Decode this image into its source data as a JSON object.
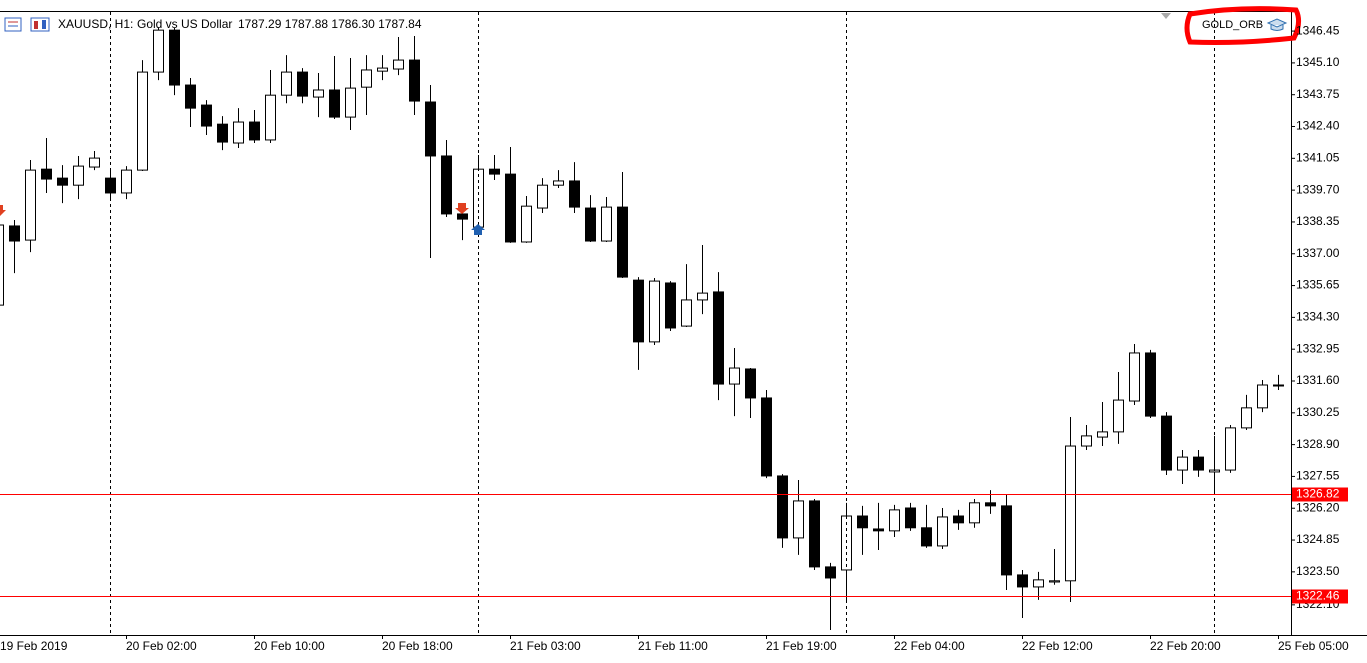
{
  "chart_data": {
    "type": "candlestick",
    "title": "XAUUSD, H1:",
    "subtitle": "Gold vs US Dollar",
    "quote": "1787.29 1787.88 1786.30 1787.84",
    "expert": "GOLD_ORB",
    "categories": [
      "19 Feb 2019",
      null,
      null,
      null,
      null,
      null,
      null,
      null,
      "20 Feb 02:00",
      null,
      null,
      null,
      null,
      null,
      null,
      null,
      "20 Feb 10:00",
      null,
      null,
      null,
      null,
      null,
      null,
      null,
      "20 Feb 18:00",
      null,
      null,
      null,
      null,
      null,
      null,
      null,
      "21 Feb 03:00",
      null,
      null,
      null,
      null,
      null,
      null,
      null,
      "21 Feb 11:00",
      null,
      null,
      null,
      null,
      null,
      null,
      null,
      "21 Feb 19:00",
      null,
      null,
      null,
      null,
      null,
      null,
      null,
      "22 Feb 04:00",
      null,
      null,
      null,
      null,
      null,
      null,
      null,
      "22 Feb 12:00",
      null,
      null,
      null,
      null,
      null,
      null,
      null,
      "22 Feb 20:00",
      null,
      null,
      null,
      null,
      null,
      null,
      null,
      "25 Feb 05:00"
    ],
    "open": [
      1334.82,
      1338.18,
      1337.58,
      1340.59,
      1340.21,
      1339.91,
      1340.68,
      1340.21,
      1339.58,
      1340.55,
      1344.71,
      1346.49,
      1344.16,
      1343.31,
      1342.5,
      1341.7,
      1342.59,
      1341.83,
      1343.73,
      1344.71,
      1343.65,
      1343.95,
      1342.8,
      1344.07,
      1344.75,
      1344.84,
      1345.22,
      1343.44,
      1341.15,
      1338.69,
      1338.13,
      1340.59,
      1340.38,
      1337.5,
      1338.94,
      1339.91,
      1340.09,
      1338.94,
      1337.54,
      1338.98,
      1335.88,
      1333.26,
      1335.76,
      1333.93,
      1335.04,
      1335.38,
      1331.47,
      1332.11,
      1330.88,
      1327.57,
      1324.94,
      1326.51,
      1323.71,
      1323.58,
      1325.87,
      1325.32,
      1325.24,
      1326.21,
      1325.37,
      1324.6,
      1325.87,
      1325.58,
      1326.43,
      1326.3,
      1323.37,
      1322.86,
      1323.07,
      1323.12,
      1328.84,
      1329.22,
      1329.44,
      1330.75,
      1332.79,
      1330.11,
      1327.82,
      1328.37,
      1327.74,
      1327.82,
      1329.61,
      1330.46,
      1331.43
    ],
    "high": [
      1338.52,
      1338.43,
      1340.98,
      1341.91,
      1340.76,
      1341.15,
      1341.36,
      1340.55,
      1340.72,
      1345.22,
      1346.58,
      1346.58,
      1344.46,
      1343.52,
      1342.84,
      1343.18,
      1343.1,
      1344.8,
      1345.43,
      1344.88,
      1344.67,
      1345.39,
      1345.31,
      1345.43,
      1345.43,
      1346.2,
      1346.24,
      1344.16,
      1341.83,
      1339.07,
      1341.19,
      1341.19,
      1341.53,
      1339.45,
      1340.21,
      1340.55,
      1340.89,
      1339.49,
      1339.41,
      1340.47,
      1336.01,
      1335.97,
      1335.84,
      1336.56,
      1337.37,
      1336.22,
      1333.0,
      1332.15,
      1331.22,
      1327.65,
      1327.4,
      1326.59,
      1323.88,
      1326.43,
      1326.3,
      1326.43,
      1326.34,
      1326.43,
      1326.34,
      1326.21,
      1326.13,
      1326.59,
      1326.97,
      1326.76,
      1323.58,
      1323.5,
      1324.47,
      1330.07,
      1329.73,
      1330.71,
      1331.98,
      1333.17,
      1332.92,
      1330.28,
      1328.67,
      1328.67,
      1329.27,
      1329.73,
      1331.01,
      1331.64,
      1331.86
    ],
    "low": [
      1334.82,
      1336.18,
      1337.07,
      1339.58,
      1339.15,
      1339.32,
      1340.55,
      1339.28,
      1339.32,
      1340.51,
      1344.37,
      1343.73,
      1342.38,
      1342.04,
      1341.4,
      1341.49,
      1341.7,
      1341.7,
      1343.39,
      1343.39,
      1342.8,
      1342.72,
      1342.25,
      1342.89,
      1344.37,
      1344.58,
      1342.89,
      1336.82,
      1338.56,
      1337.58,
      1337.92,
      1340.13,
      1337.46,
      1337.46,
      1338.73,
      1339.79,
      1338.73,
      1337.5,
      1337.5,
      1335.97,
      1332.07,
      1333.13,
      1333.72,
      1333.89,
      1334.44,
      1330.79,
      1330.11,
      1330.03,
      1327.48,
      1324.52,
      1324.22,
      1323.58,
      1321.03,
      1322.27,
      1324.22,
      1324.43,
      1324.98,
      1325.24,
      1324.52,
      1324.47,
      1325.28,
      1325.37,
      1325.96,
      1322.73,
      1321.54,
      1322.31,
      1322.95,
      1322.22,
      1328.67,
      1328.84,
      1328.93,
      1330.58,
      1330.03,
      1327.61,
      1327.23,
      1327.53,
      1326.85,
      1327.7,
      1329.52,
      1330.28,
      1331.22
    ],
    "close": [
      1338.22,
      1337.54,
      1340.55,
      1340.17,
      1339.91,
      1340.72,
      1341.06,
      1339.58,
      1340.55,
      1344.71,
      1346.49,
      1344.16,
      1343.18,
      1342.42,
      1341.74,
      1342.59,
      1341.83,
      1343.73,
      1344.71,
      1343.69,
      1343.95,
      1342.8,
      1344.03,
      1344.8,
      1344.88,
      1345.22,
      1343.48,
      1341.15,
      1338.69,
      1338.47,
      1340.59,
      1340.38,
      1337.5,
      1339.02,
      1339.91,
      1340.09,
      1338.98,
      1337.54,
      1338.98,
      1336.01,
      1333.26,
      1335.84,
      1333.85,
      1335.04,
      1335.33,
      1331.47,
      1332.15,
      1330.88,
      1327.57,
      1324.94,
      1326.51,
      1323.71,
      1323.24,
      1325.87,
      1325.37,
      1325.24,
      1326.13,
      1325.37,
      1324.6,
      1325.83,
      1325.58,
      1326.43,
      1326.3,
      1323.37,
      1322.86,
      1323.16,
      1323.12,
      1328.84,
      1329.27,
      1329.44,
      1330.79,
      1332.79,
      1330.11,
      1327.82,
      1328.37,
      1327.82,
      1327.82,
      1329.61,
      1330.46,
      1331.43,
      1331.39
    ],
    "up_color": "#ffffff",
    "down_color": "#000000",
    "wick_color": "#000000",
    "ylim": [
      1320.82,
      1347.26
    ],
    "yticks": [
      1346.45,
      {
        "value": 1345.1,
        "label": "1345.10"
      },
      1343.75,
      {
        "value": 1342.4,
        "label": "1342.40"
      },
      1341.05,
      {
        "value": 1339.7,
        "label": "1339.70"
      },
      1338.35,
      {
        "value": 1337,
        "label": "1337.00"
      },
      1335.65,
      {
        "value": 1334.3,
        "label": "1334.30"
      },
      1332.95,
      {
        "value": 1331.6,
        "label": "1331.60"
      },
      1330.25,
      {
        "value": 1328.9,
        "label": "1328.90"
      },
      1327.55,
      {
        "value": 1326.2,
        "label": "1326.20"
      },
      1324.85,
      {
        "value": 1323.5,
        "label": "1323.50"
      },
      {
        "value": 1322.1,
        "label": "1322.10"
      }
    ],
    "levels": [
      {
        "value": 1326.82,
        "color": "#ff0000"
      },
      {
        "value": 1322.46,
        "color": "#ff0000"
      }
    ]
  }
}
